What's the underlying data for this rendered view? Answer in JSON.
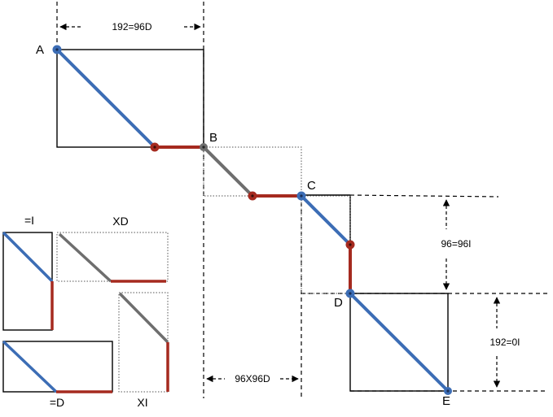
{
  "points": {
    "a": "A",
    "b": "B",
    "c": "C",
    "d": "D",
    "e": "E"
  },
  "dimensions": {
    "top_width": "192=96D",
    "bottom_width": "96X96D",
    "right_upper_height": "96=96I",
    "right_lower_height": "192=0I"
  },
  "insets": {
    "eq_i": "=I",
    "xd": "XD",
    "eq_d": "=D",
    "xi": "XI"
  },
  "colors": {
    "blue": "#3c6db5",
    "red": "#a52a1f",
    "gray": "#6e6e6e",
    "black": "#000000"
  }
}
